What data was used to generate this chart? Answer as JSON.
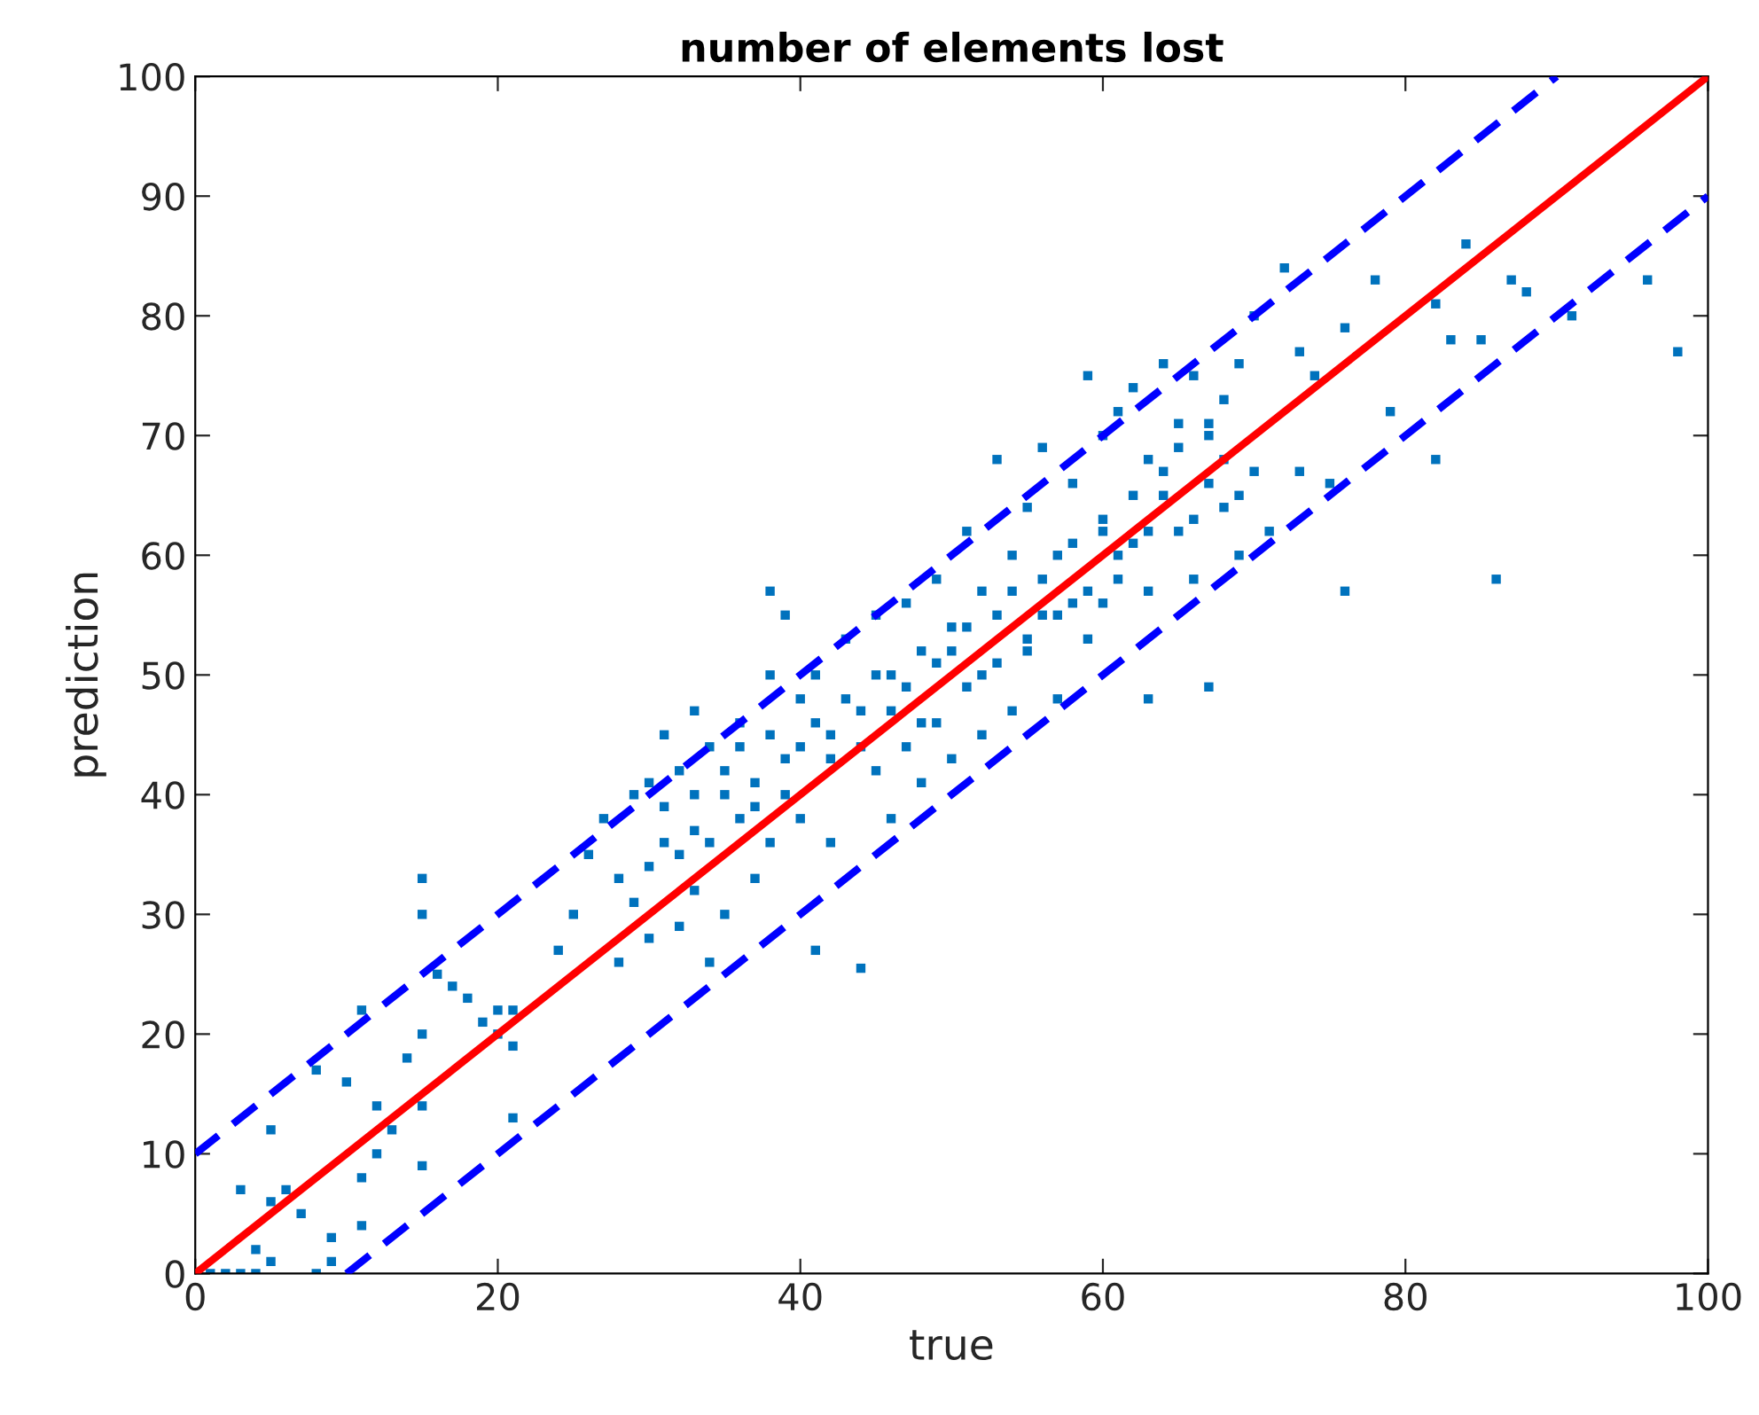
{
  "chart_data": {
    "type": "scatter",
    "title": "number of elements lost",
    "xlabel": "true",
    "ylabel": "prediction",
    "xlim": [
      0,
      100
    ],
    "ylim": [
      0,
      100
    ],
    "xticks": [
      0,
      20,
      40,
      60,
      80,
      100
    ],
    "yticks": [
      0,
      10,
      20,
      30,
      40,
      50,
      60,
      70,
      80,
      90,
      100
    ],
    "grid": false,
    "series": [
      {
        "color": "#0072bd",
        "marker": "square",
        "x": [
          1,
          2,
          3,
          4,
          4,
          3,
          5,
          5,
          5,
          6,
          7,
          8,
          8,
          9,
          9,
          10,
          11,
          11,
          11,
          12,
          12,
          13,
          14,
          15,
          15,
          15,
          15,
          15,
          16,
          17,
          18,
          19,
          20,
          20,
          21,
          21,
          21,
          24,
          25,
          26,
          27,
          28,
          28,
          29,
          29,
          30,
          30,
          31,
          31,
          32,
          32,
          33,
          33,
          33,
          34,
          34,
          35,
          35,
          36,
          36,
          37,
          37,
          38,
          38,
          38,
          39,
          39,
          40,
          40,
          41,
          41,
          42,
          42,
          43,
          44,
          44,
          45,
          45,
          46,
          46,
          47,
          47,
          48,
          48,
          49,
          49,
          50,
          50,
          51,
          51,
          52,
          52,
          53,
          53,
          54,
          54,
          55,
          55,
          56,
          56,
          57,
          57,
          58,
          58,
          59,
          59,
          60,
          60,
          60,
          61,
          61,
          62,
          62,
          63,
          63,
          63,
          64,
          64,
          65,
          65,
          66,
          66,
          67,
          67,
          67,
          68,
          68,
          69,
          69,
          70,
          70,
          71,
          72,
          73,
          73,
          74,
          75,
          76,
          76,
          78,
          79,
          82,
          82,
          83,
          84,
          85,
          86,
          87,
          88,
          91,
          96,
          98,
          30,
          31,
          32,
          33,
          34,
          35,
          36,
          37,
          38,
          39,
          40,
          41,
          42,
          43,
          44,
          45,
          46,
          47,
          48,
          49,
          50,
          51,
          52,
          53,
          54,
          55,
          56,
          57,
          58,
          59,
          60,
          61,
          62,
          63,
          64,
          65,
          66,
          67,
          68,
          69
        ],
        "values": [
          0,
          0,
          0,
          2,
          0,
          7,
          1,
          6,
          12,
          7,
          5,
          0,
          17,
          3,
          1,
          16,
          22,
          8,
          4,
          14,
          10,
          12,
          18,
          33,
          30,
          20,
          14,
          9,
          25,
          24,
          23,
          21,
          22,
          20,
          22,
          13,
          19,
          27,
          30,
          35,
          38,
          33,
          26,
          40,
          31,
          41,
          28,
          36,
          45,
          42,
          29,
          47,
          37,
          32,
          44,
          26,
          40,
          30,
          46,
          38,
          41,
          33,
          57,
          50,
          36,
          55,
          43,
          48,
          38,
          27,
          50,
          45,
          36,
          53,
          25.5,
          47,
          55,
          42,
          50,
          38,
          56,
          44,
          52,
          41,
          58,
          46,
          54,
          43,
          62,
          49,
          57,
          45,
          68,
          51,
          60,
          47,
          64,
          53,
          69,
          55,
          60,
          48,
          66,
          56,
          75,
          53,
          70,
          62,
          56,
          72,
          58,
          74,
          61,
          48,
          68,
          57,
          76,
          65,
          62,
          71,
          58,
          75,
          66,
          49,
          70,
          64,
          73,
          60,
          76,
          67,
          80,
          62,
          84,
          77,
          67,
          75,
          66,
          79,
          57,
          83,
          72,
          81,
          68,
          78,
          86,
          78,
          58,
          83,
          82,
          80,
          83,
          77,
          34,
          39,
          35,
          40,
          36,
          42,
          44,
          39,
          45,
          40,
          44,
          46,
          43,
          48,
          44,
          50,
          47,
          49,
          46,
          51,
          52,
          54,
          50,
          55,
          57,
          52,
          58,
          55,
          61,
          57,
          63,
          60,
          65,
          62,
          67,
          69,
          63,
          71,
          68,
          65
        ]
      },
      {
        "type": "line",
        "color": "#ff0000",
        "line_style": "solid",
        "x": [
          0,
          100
        ],
        "values": [
          0,
          100
        ]
      },
      {
        "type": "line",
        "color": "#0000ff",
        "line_style": "dashed",
        "x": [
          0,
          90
        ],
        "values": [
          10,
          100
        ]
      },
      {
        "type": "line",
        "color": "#0000ff",
        "line_style": "dashed",
        "x": [
          10,
          100
        ],
        "values": [
          0,
          90
        ]
      }
    ]
  }
}
